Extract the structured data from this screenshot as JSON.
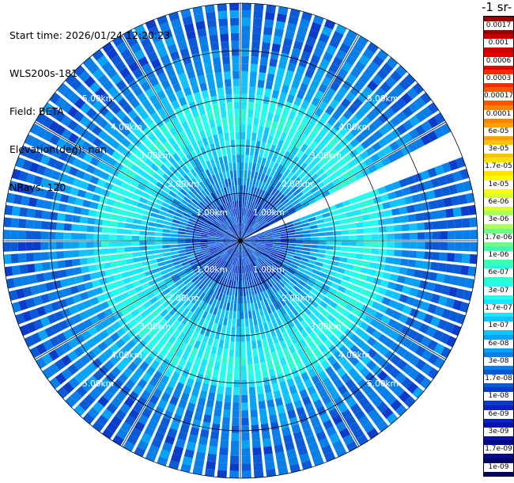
{
  "info": {
    "start_time": "Start time: 2026/01/24 12:20:23",
    "instrument": "WLS200s-181",
    "field": "Field: BETA",
    "elevation": "Elevation(deg): nan",
    "nrays": "NRays: 120"
  },
  "colorbar": {
    "units_label": "-1 sr-",
    "levels": [
      "0.0017",
      "0.001",
      "0.0006",
      "0.0003",
      "0.00017",
      "0.0001",
      "6e-05",
      "3e-05",
      "1.7e-05",
      "1e-05",
      "6e-06",
      "3e-06",
      "1.7e-06",
      "1e-06",
      "6e-07",
      "3e-07",
      "1.7e-07",
      "1e-07",
      "6e-08",
      "3e-08",
      "1.7e-08",
      "1e-08",
      "6e-09",
      "3e-09",
      "1.7e-09",
      "1e-09"
    ],
    "colors": [
      "#9a0000",
      "#cc0000",
      "#e60000",
      "#ff2a00",
      "#ff5500",
      "#ff7f00",
      "#ffa000",
      "#ffc200",
      "#ffe100",
      "#ffff00",
      "#d8ff30",
      "#a8ff5a",
      "#6cff84",
      "#3dffad",
      "#2bffd2",
      "#20ffee",
      "#17e6ff",
      "#0ec4ff",
      "#06a2f5",
      "#0a7ee8",
      "#0a5ad8",
      "#0a3ccc",
      "#0a22c0",
      "#0810a8",
      "#050a88",
      "#020860"
    ]
  },
  "range_rings": {
    "labels_km": [
      "1.00km",
      "2.00km",
      "3.00km",
      "4.00km",
      "5.00km"
    ]
  },
  "icons": {
    "radar_origin": "radar-origin-icon"
  }
}
